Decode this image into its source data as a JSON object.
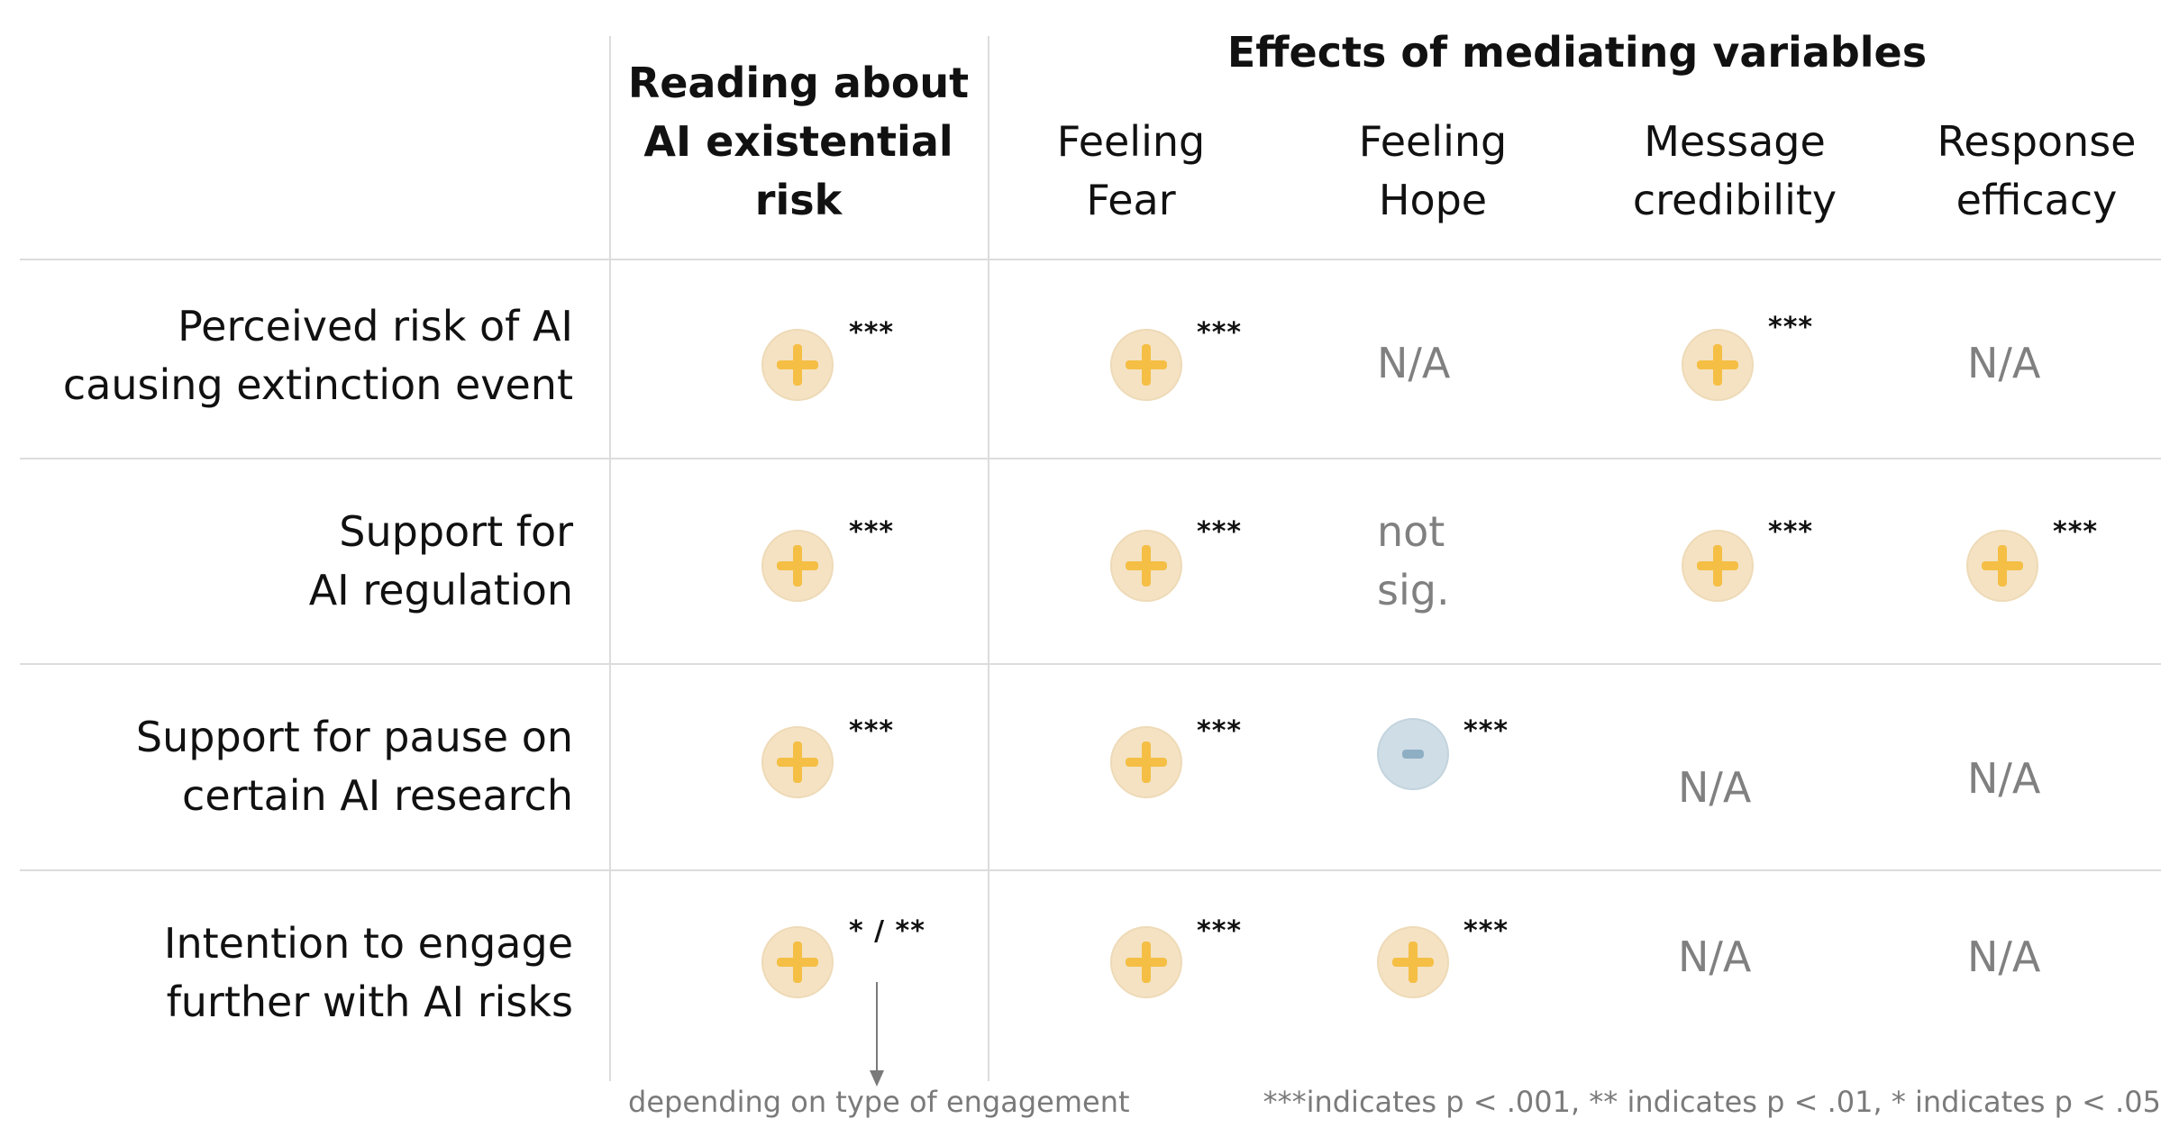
{
  "headers": {
    "col1_line1": "Reading about",
    "col1_line2": "AI existential",
    "col1_line3": "risk",
    "group_title": "Effects of mediating variables",
    "fear_line1": "Feeling",
    "fear_line2": "Fear",
    "hope_line1": "Feeling",
    "hope_line2": "Hope",
    "cred_line1": "Message",
    "cred_line2": "credibility",
    "eff_line1": "Response",
    "eff_line2": "efficacy"
  },
  "rows": [
    {
      "label_line1": "Perceived risk of AI",
      "label_line2": "causing extinction event"
    },
    {
      "label_line1": "Support for",
      "label_line2": "AI regulation"
    },
    {
      "label_line1": "Support for pause on",
      "label_line2": "certain AI research"
    },
    {
      "label_line1": "Intention to engage",
      "label_line2": "further with AI risks"
    }
  ],
  "cells": {
    "r1": {
      "reading": "***",
      "fear": "***",
      "hope": "N/A",
      "cred": "***",
      "eff": "N/A"
    },
    "r2": {
      "reading": "***",
      "fear": "***",
      "hope_line1": "not",
      "hope_line2": "sig.",
      "cred": "***",
      "eff": "***"
    },
    "r3": {
      "reading": "***",
      "fear": "***",
      "hope": "***",
      "cred": "N/A",
      "eff": "N/A"
    },
    "r4": {
      "reading": "* / **",
      "fear": "***",
      "hope": "***",
      "cred": "N/A",
      "eff": "N/A"
    }
  },
  "effects": {
    "r1": {
      "reading": "positive",
      "fear": "positive",
      "cred": "positive"
    },
    "r2": {
      "reading": "positive",
      "fear": "positive",
      "cred": "positive",
      "eff": "positive"
    },
    "r3": {
      "reading": "positive",
      "fear": "positive",
      "hope": "negative"
    },
    "r4": {
      "reading": "positive",
      "fear": "positive",
      "hope": "positive"
    }
  },
  "footnotes": {
    "engagement": "depending on type of engagement",
    "significance": "***indicates p < .001, ** indicates p < .01, * indicates p < .05"
  },
  "colors": {
    "positive_circle": "#f4e2c3",
    "positive_sign": "#f5bf45",
    "negative_circle": "#cfdde6",
    "negative_sign": "#8eaec4",
    "na_text": "#808080",
    "grid": "#dcdcdc"
  },
  "icons": {
    "positive": "plus-circle-icon",
    "negative": "minus-circle-icon"
  }
}
